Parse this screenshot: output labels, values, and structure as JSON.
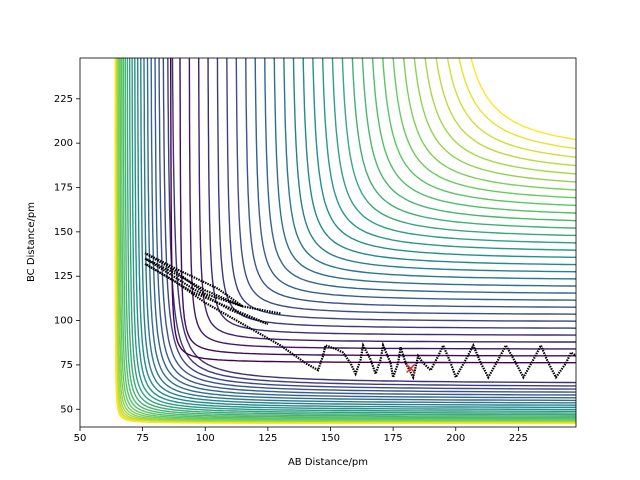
{
  "chart_data": {
    "type": "contour",
    "xlabel": "AB Distance/pm",
    "ylabel": "BC Distance/pm",
    "xlim": [
      50,
      248
    ],
    "ylim": [
      40,
      248
    ],
    "xticks": [
      50,
      75,
      100,
      125,
      150,
      175,
      200,
      225
    ],
    "yticks": [
      50,
      75,
      100,
      125,
      150,
      175,
      200,
      225
    ],
    "trajectory": {
      "color": "#000000",
      "x": [
        130,
        115,
        100,
        88,
        76,
        90,
        105,
        115,
        100,
        86,
        76,
        85,
        95,
        110,
        125,
        110,
        95,
        76,
        88,
        100,
        115,
        130,
        140,
        145,
        147,
        148,
        152,
        155,
        158,
        160,
        162,
        163,
        166,
        168,
        170,
        171,
        174,
        175,
        177,
        178,
        180,
        183,
        185,
        187,
        190,
        193,
        195,
        198,
        200,
        204,
        207,
        210,
        213,
        217,
        220,
        224,
        227,
        231,
        234,
        237,
        240,
        244,
        246,
        248
      ],
      "y": [
        104,
        108,
        115,
        128,
        138,
        128,
        118,
        108,
        117,
        128,
        135,
        127,
        118,
        106,
        98,
        107,
        116,
        132,
        122,
        110,
        98,
        86,
        76,
        72,
        80,
        86,
        84,
        82,
        76,
        70,
        78,
        86,
        78,
        70,
        78,
        86,
        76,
        68,
        76,
        85,
        76,
        68,
        80,
        76,
        72,
        80,
        86,
        76,
        68,
        78,
        86,
        76,
        68,
        78,
        86,
        76,
        68,
        78,
        86,
        76,
        68,
        76,
        82,
        80
      ]
    },
    "markers": [
      {
        "x": 182,
        "y": 73,
        "color": "#e8292b"
      }
    ]
  }
}
